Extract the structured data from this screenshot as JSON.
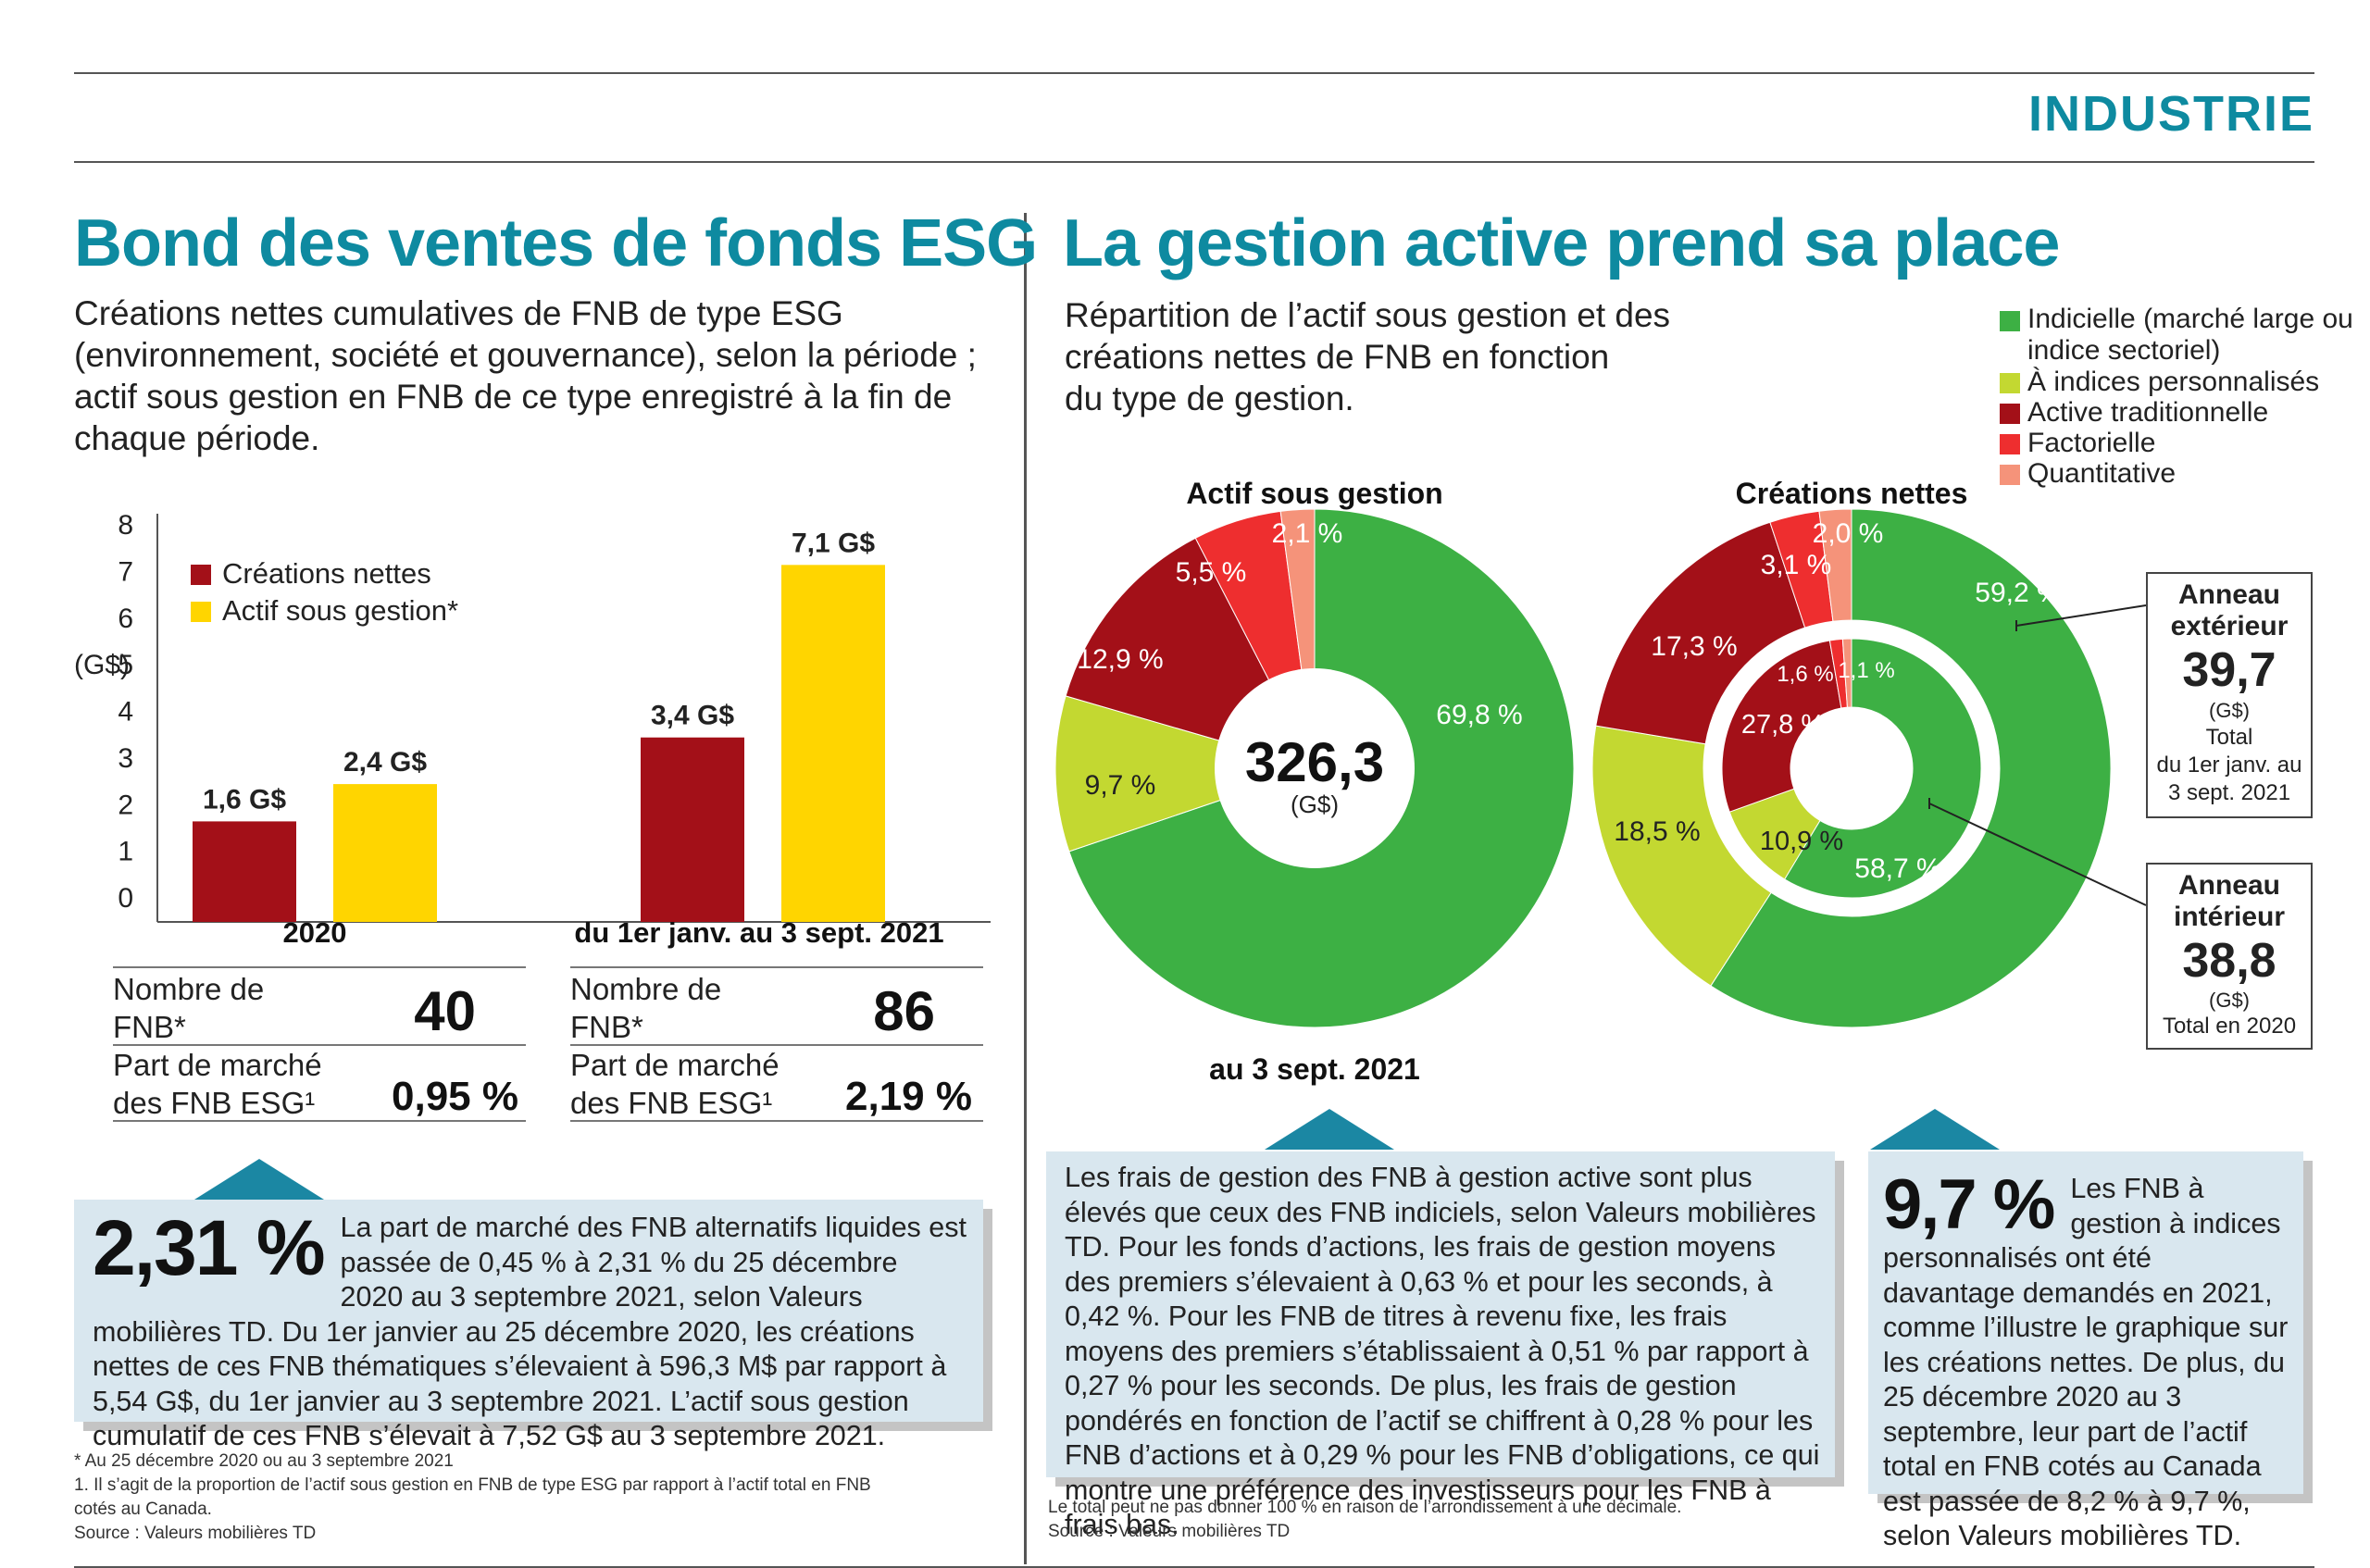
{
  "section": "INDUSTRIE",
  "left": {
    "title": "Bond des ventes de fonds ESG",
    "subtitle_lines": [
      "Créations nettes cumulatives de FNB de type ESG",
      "(environnement, société et gouvernance), selon la période ;",
      "actif sous gestion en FNB de ce type enregistré à la fin de",
      "chaque période."
    ],
    "stats": [
      {
        "l1": "Nombre de",
        "l2": "FNB*",
        "v": "40"
      },
      {
        "l1": "Part de marché",
        "l2": "des FNB ESG¹",
        "v": "0,95 %"
      },
      {
        "l1": "Nombre de",
        "l2": "FNB*",
        "v": "86"
      },
      {
        "l1": "Part de marché",
        "l2": "des FNB ESG¹",
        "v": "2,19 %"
      }
    ],
    "box": {
      "pct": "2,31 %",
      "text": "La part de marché des FNB alternatifs liquides est passée de 0,45 % à 2,31 % du 25 décembre 2020 au 3 septembre 2021, selon Valeurs mobilières TD. Du 1er janvier au 25 décembre 2020, les créations nettes de ces FNB thématiques s’élevaient à 596,3 M$ par rapport à 5,54 G$, du 1er janvier au 3 septembre 2021. L’actif sous gestion cumulatif de ces FNB s’élevait à 7,52 G$ au 3 septembre 2021."
    },
    "footnotes": [
      "* Au 25 décembre 2020 ou au 3 septembre 2021",
      "1. Il s’agit de la proportion de l’actif sous gestion en FNB de type ESG par rapport à l’actif total en FNB",
      "cotés au Canada.",
      "Source : Valeurs mobilières TD"
    ]
  },
  "right": {
    "title": "La gestion active prend sa place",
    "subtitle_lines": [
      "Répartition de l’actif sous gestion et des",
      "créations nettes de FNB en fonction",
      "du type de gestion."
    ],
    "legend": [
      {
        "label": "Indicielle (marché large ou",
        "label2": "indice sectoriel)",
        "color": "#3db044"
      },
      {
        "label": "À indices personnalisés",
        "color": "#c3d831"
      },
      {
        "label": "Active traditionnelle",
        "color": "#a31018"
      },
      {
        "label": "Factorielle",
        "color": "#ee2e2f"
      },
      {
        "label": "Quantitative",
        "color": "#f5937a"
      }
    ],
    "pie1_title": "Actif sous gestion",
    "pie1_center": "326,3",
    "pie1_unit": "(G$)",
    "pie1_caption": "au 3 sept. 2021",
    "pie2_title": "Créations nettes",
    "outer_box": {
      "title1": "Anneau",
      "title2": "extérieur",
      "value": "39,7",
      "unit": "(G$)",
      "l1": "Total",
      "l2": "du 1er janv. au",
      "l3": "3 sept. 2021"
    },
    "inner_box": {
      "title1": "Anneau",
      "title2": "intérieur",
      "value": "38,8",
      "unit": "(G$)",
      "l1": "Total en 2020"
    },
    "box1": "Les frais de gestion des FNB à gestion active sont plus élevés que ceux des FNB indiciels, selon Valeurs mobilières TD. Pour les fonds d’actions, les frais de gestion moyens des premiers s’élevaient à 0,63 % et pour les seconds, à 0,42 %. Pour les FNB de titres à revenu fixe, les frais moyens des premiers s’établissaient à 0,51 % par rapport à 0,27 % pour les seconds. De plus, les frais de gestion pondérés en fonction de l’actif se chiffrent à 0,28 % pour les FNB d’actions et à 0,29 % pour les FNB d’obligations, ce qui montre une préférence des investisseurs pour les FNB à frais bas.",
    "box2_pct": "9,7 %",
    "box2_text": "Les FNB à gestion à indices personnalisés ont été davantage demandés en 2021, comme l’illustre le graphique sur les créations nettes. De plus, du 25 décembre 2020 au 3 septembre, leur part de l’actif total en FNB cotés au Canada est passée de 8,2 % à 9,7 %, selon Valeurs mobilières TD.",
    "footnotes": [
      "Le total peut ne pas donner 100 % en raison de l’arrondissement à une décimale.",
      "Source : Valeurs mobilières TD"
    ]
  },
  "chart_data": [
    {
      "type": "bar",
      "categories": [
        "2020",
        "du 1er janv. au 3 sept. 2021"
      ],
      "series": [
        {
          "name": "Créations nettes",
          "values": [
            1.6,
            3.4
          ],
          "labels": [
            "1,6 G$",
            "3,4 G$"
          ],
          "color": "#a31018"
        },
        {
          "name": "Actif sous gestion*",
          "values": [
            2.4,
            7.1
          ],
          "labels": [
            "2,4 G$",
            "7,1 G$"
          ],
          "color": "#ffd500"
        }
      ],
      "ylabel": "(G$)",
      "ylim": [
        0,
        8
      ],
      "yticks": [
        "0",
        "1",
        "2",
        "3",
        "4",
        "5",
        "6",
        "7",
        "8"
      ]
    },
    {
      "type": "pie",
      "title": "Actif sous gestion",
      "categories": [
        "Indicielle",
        "À indices personnalisés",
        "Active traditionnelle",
        "Factorielle",
        "Quantitative"
      ],
      "values": [
        69.8,
        9.7,
        12.9,
        5.5,
        2.1
      ],
      "labels": [
        "69,8 %",
        "9,7 %",
        "12,9 %",
        "5,5 %",
        "2,1 %"
      ],
      "colors": [
        "#3db044",
        "#c3d831",
        "#a31018",
        "#ee2e2f",
        "#f5937a"
      ],
      "total": "326,3"
    },
    {
      "type": "pie",
      "title": "Créations nettes",
      "categories": [
        "Indicielle",
        "À indices personnalisés",
        "Active traditionnelle",
        "Factorielle",
        "Quantitative"
      ],
      "series": [
        {
          "name": "Anneau extérieur",
          "values": [
            59.2,
            18.5,
            17.3,
            3.1,
            2.0
          ],
          "labels": [
            "59,2 %",
            "18,5 %",
            "17,3 %",
            "3,1 %",
            "2,0 %"
          ],
          "total": "39,7"
        },
        {
          "name": "Anneau intérieur",
          "values": [
            58.7,
            10.9,
            27.8,
            1.6,
            1.1
          ],
          "labels": [
            "58,7 %",
            "10,9 %",
            "27,8 %",
            "1,6 %",
            "1,1 %"
          ],
          "total": "38,8"
        }
      ],
      "colors": [
        "#3db044",
        "#c3d831",
        "#a31018",
        "#ee2e2f",
        "#f5937a"
      ]
    }
  ]
}
